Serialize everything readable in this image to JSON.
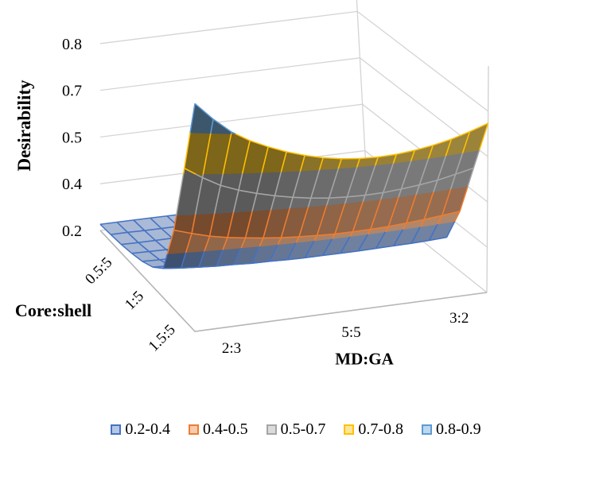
{
  "chart_data": {
    "type": "surface",
    "z_axis": {
      "label": "Desirability",
      "tick_labels": [
        "0.2",
        "0.4",
        "0.5",
        "0.7",
        "0.8"
      ],
      "tick_values": [
        0.2,
        0.35,
        0.5,
        0.65,
        0.8
      ],
      "min": 0.2,
      "max": 0.95
    },
    "x_axis": {
      "label": "MD:GA",
      "categories": [
        "2:3",
        "5:5",
        "3:2"
      ]
    },
    "y_axis": {
      "label": "Core:shell",
      "categories": [
        "0.5:5",
        "1:5",
        "1.5:5"
      ]
    },
    "legend_position": "bottom",
    "grid_on": true,
    "bands": [
      {
        "label": "0.2-0.4",
        "line": "#4472C4",
        "legend_fill": "#B4C7E7"
      },
      {
        "label": "0.4-0.5",
        "line": "#ED7D31",
        "legend_fill": "#F7CBAC"
      },
      {
        "label": "0.5-0.7",
        "line": "#A5A5A5",
        "legend_fill": "#DBDBDB"
      },
      {
        "label": "0.7-0.8",
        "line": "#FFC000",
        "legend_fill": "#FFE599"
      },
      {
        "label": "0.8-0.9",
        "line": "#5B9BD5",
        "legend_fill": "#BDD7EE"
      }
    ],
    "band_boundaries": [
      0.35,
      0.5,
      0.65,
      0.8
    ],
    "surface_z": [
      [
        0.22,
        0.22,
        0.22,
        0.22,
        0.22,
        0.22,
        0.22,
        0.22,
        0.22,
        0.22,
        0.22,
        0.22,
        0.22,
        0.22,
        0.22,
        0.22,
        0.22
      ],
      [
        0.223,
        0.223,
        0.222,
        0.222,
        0.222,
        0.222,
        0.222,
        0.222,
        0.222,
        0.222,
        0.222,
        0.222,
        0.222,
        0.222,
        0.222,
        0.222,
        0.222
      ],
      [
        0.227,
        0.226,
        0.226,
        0.226,
        0.225,
        0.225,
        0.225,
        0.225,
        0.225,
        0.225,
        0.225,
        0.225,
        0.225,
        0.225,
        0.225,
        0.225,
        0.225
      ],
      [
        0.234,
        0.233,
        0.232,
        0.231,
        0.231,
        0.23,
        0.23,
        0.23,
        0.229,
        0.229,
        0.229,
        0.229,
        0.229,
        0.23,
        0.23,
        0.23,
        0.231
      ],
      [
        0.244,
        0.242,
        0.241,
        0.239,
        0.239,
        0.238,
        0.237,
        0.237,
        0.236,
        0.236,
        0.236,
        0.236,
        0.237,
        0.237,
        0.237,
        0.238,
        0.239
      ],
      [
        0.261,
        0.258,
        0.255,
        0.253,
        0.252,
        0.251,
        0.25,
        0.249,
        0.248,
        0.248,
        0.248,
        0.248,
        0.248,
        0.249,
        0.25,
        0.251,
        0.252
      ],
      [
        0.292,
        0.286,
        0.282,
        0.278,
        0.276,
        0.273,
        0.272,
        0.27,
        0.269,
        0.269,
        0.269,
        0.269,
        0.27,
        0.271,
        0.272,
        0.274,
        0.277
      ],
      [
        0.446,
        0.429,
        0.414,
        0.403,
        0.395,
        0.388,
        0.382,
        0.378,
        0.375,
        0.373,
        0.373,
        0.374,
        0.376,
        0.38,
        0.385,
        0.391,
        0.398
      ],
      [
        0.672,
        0.637,
        0.607,
        0.586,
        0.57,
        0.556,
        0.545,
        0.536,
        0.53,
        0.527,
        0.526,
        0.528,
        0.533,
        0.54,
        0.549,
        0.562,
        0.576
      ],
      [
        0.905,
        0.852,
        0.807,
        0.775,
        0.75,
        0.729,
        0.712,
        0.699,
        0.69,
        0.685,
        0.684,
        0.687,
        0.694,
        0.705,
        0.719,
        0.738,
        0.76
      ]
    ]
  }
}
